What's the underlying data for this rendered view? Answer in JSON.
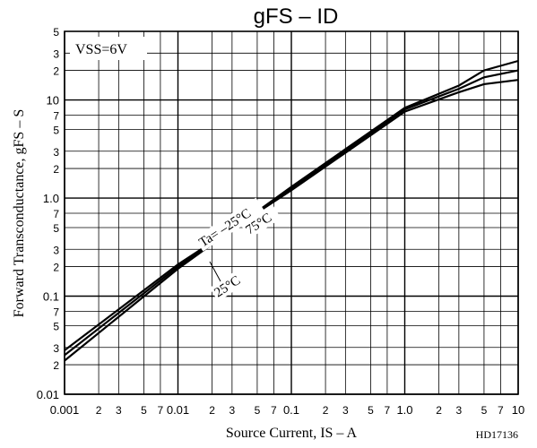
{
  "chart_data": {
    "type": "line",
    "title": "gFS – ID",
    "xlabel": "Source Current, IS – A",
    "ylabel": "Forward Transconductance, gFS – S",
    "annotations": [
      "VSS=6V",
      "HD17136"
    ],
    "log_x": true,
    "log_y": true,
    "grid": true,
    "x": [
      0.001,
      0.01,
      0.1,
      1,
      3,
      5,
      10
    ],
    "series": [
      {
        "name": "Ta= –25°C",
        "color": "#000000",
        "values": [
          0.022,
          0.19,
          1.3,
          8.3,
          14,
          20,
          25
        ]
      },
      {
        "name": "25°C",
        "color": "#000000",
        "values": [
          0.025,
          0.2,
          1.25,
          8.0,
          13,
          17,
          20
        ]
      },
      {
        "name": "75°C",
        "color": "#000000",
        "values": [
          0.028,
          0.21,
          1.2,
          7.6,
          12,
          14.5,
          16
        ]
      }
    ],
    "xlim": [
      0.001,
      10
    ],
    "ylim": [
      0.01,
      50
    ],
    "xticks": [
      0.001,
      {
        "value": 0.002,
        "label": "2"
      },
      {
        "value": 0.003,
        "label": "3"
      },
      {
        "value": 0.005,
        "label": "5"
      },
      {
        "value": 0.007,
        "label": "7"
      },
      0.01,
      {
        "value": 0.02,
        "label": "2"
      },
      {
        "value": 0.03,
        "label": "3"
      },
      {
        "value": 0.05,
        "label": "5"
      },
      {
        "value": 0.07,
        "label": "7"
      },
      0.1,
      {
        "value": 0.2,
        "label": "2"
      },
      {
        "value": 0.3,
        "label": "3"
      },
      {
        "value": 0.5,
        "label": "5"
      },
      {
        "value": 0.7,
        "label": "7"
      },
      {
        "value": 1,
        "label": "1.0"
      },
      {
        "value": 2,
        "label": "2"
      },
      {
        "value": 3,
        "label": "3"
      },
      {
        "value": 5,
        "label": "5"
      },
      {
        "value": 7,
        "label": "7"
      },
      10
    ],
    "yticks": [
      0.01,
      {
        "value": 0.02,
        "label": "2"
      },
      {
        "value": 0.03,
        "label": "3"
      },
      {
        "value": 0.05,
        "label": "5"
      },
      {
        "value": 0.07,
        "label": "7"
      },
      0.1,
      {
        "value": 0.2,
        "label": "2"
      },
      {
        "value": 0.3,
        "label": "3"
      },
      {
        "value": 0.5,
        "label": "5"
      },
      {
        "value": 0.7,
        "label": "7"
      },
      {
        "value": 1,
        "label": "1.0"
      },
      {
        "value": 2,
        "label": "2"
      },
      {
        "value": 3,
        "label": "3"
      },
      {
        "value": 5,
        "label": "5"
      },
      {
        "value": 7,
        "label": "7"
      },
      10,
      {
        "value": 20,
        "label": "2"
      },
      {
        "value": 30,
        "label": "3"
      },
      {
        "value": 50,
        "label": "5"
      }
    ]
  }
}
